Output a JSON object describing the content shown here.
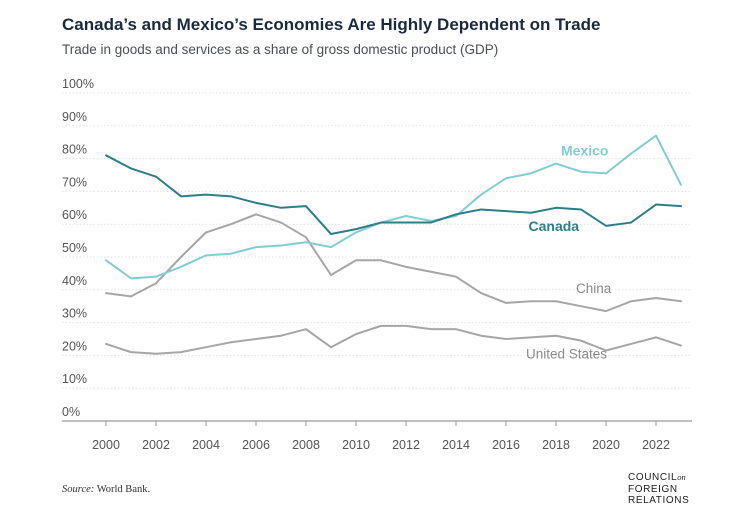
{
  "title": "Canada’s and Mexico’s Economies Are Highly Dependent on Trade",
  "subtitle": "Trade in goods and services as a share of gross domestic product (GDP)",
  "source": {
    "label": "Source:",
    "text": " World Bank."
  },
  "logo": {
    "line1": "COUNCIL",
    "line1_small": "on",
    "line2": "FOREIGN",
    "line3": "RELATIONS"
  },
  "chart_data": {
    "type": "line",
    "title": "Canada’s and Mexico’s Economies Are Highly Dependent on Trade",
    "subtitle": "Trade in goods and services as a share of gross domestic product (GDP)",
    "xlabel": "",
    "ylabel": "",
    "xlim": [
      2000,
      2023
    ],
    "ylim": [
      0,
      100
    ],
    "grid": "horizontal",
    "x": [
      2000,
      2001,
      2002,
      2003,
      2004,
      2005,
      2006,
      2007,
      2008,
      2009,
      2010,
      2011,
      2012,
      2013,
      2014,
      2015,
      2016,
      2017,
      2018,
      2019,
      2020,
      2021,
      2022,
      2023
    ],
    "x_ticks": [
      2000,
      2002,
      2004,
      2006,
      2008,
      2010,
      2012,
      2014,
      2016,
      2018,
      2020,
      2022
    ],
    "x_tick_labels": [
      "2000",
      "2002",
      "2004",
      "2006",
      "2008",
      "2010",
      "2012",
      "2014",
      "2016",
      "2018",
      "2020",
      "2022"
    ],
    "y_ticks": [
      0,
      10,
      20,
      30,
      40,
      50,
      60,
      70,
      80,
      90,
      100
    ],
    "y_tick_labels": [
      "0%",
      "10%",
      "20%",
      "30%",
      "40%",
      "50%",
      "60%",
      "70%",
      "80%",
      "90%",
      "100%"
    ],
    "series": [
      {
        "name": "Mexico",
        "color": "#82cdd2",
        "label_year": 2018.2,
        "label_value": 81,
        "values": [
          49,
          43.5,
          44,
          47,
          50.5,
          51,
          53,
          53.5,
          54.5,
          53,
          57.5,
          60.5,
          62.5,
          61,
          62.5,
          69,
          74,
          75.5,
          78.5,
          76,
          75.5,
          81.5,
          87,
          72
        ]
      },
      {
        "name": "Canada",
        "color": "#2d7e87",
        "label_year": 2016.9,
        "label_value": 58,
        "values": [
          81,
          77,
          74.5,
          68.5,
          69,
          68.5,
          66.5,
          65,
          65.5,
          57,
          58.5,
          60.5,
          60.5,
          60.5,
          63,
          64.5,
          64,
          63.5,
          65,
          64.5,
          59.5,
          60.5,
          66,
          65.5
        ]
      },
      {
        "name": "China",
        "color": "#a6a6a6",
        "label_year": 2018.8,
        "label_value": 39,
        "values": [
          39,
          38,
          42,
          50,
          57.5,
          60,
          63,
          60.5,
          56,
          44.5,
          49,
          49,
          47,
          45.5,
          44,
          39,
          36,
          36.5,
          36.5,
          35,
          33.5,
          36.5,
          37.5,
          36.5
        ]
      },
      {
        "name": "United States",
        "color": "#a6a6a6",
        "label_year": 2016.8,
        "label_value": 19,
        "values": [
          23.5,
          21,
          20.5,
          21,
          22.5,
          24,
          25,
          26,
          28,
          22.5,
          26.5,
          29,
          29,
          28,
          28,
          26,
          25,
          25.5,
          26,
          24.5,
          21.5,
          23.5,
          25.5,
          23
        ]
      }
    ]
  }
}
